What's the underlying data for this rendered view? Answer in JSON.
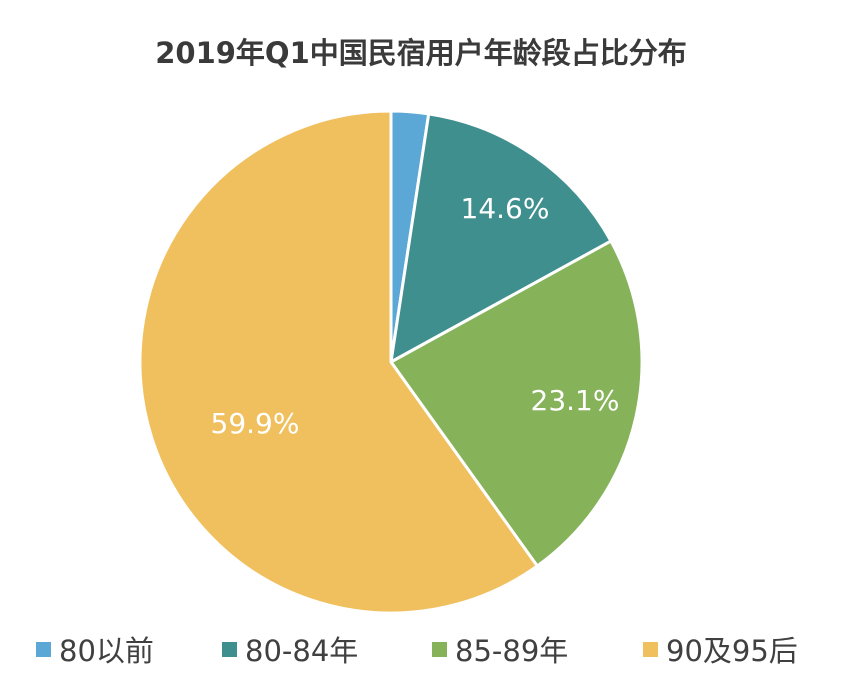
{
  "title": "2019年Q1中国民宿用户年龄段占比分布",
  "chart_data": {
    "type": "pie",
    "title": "2019年Q1中国民宿用户年龄段占比分布",
    "categories": [
      "80以前",
      "80-84年",
      "85-89年",
      "90及95后"
    ],
    "values": [
      2.4,
      14.6,
      23.1,
      59.9
    ],
    "labels": [
      "",
      "14.6%",
      "23.1%",
      "59.9%"
    ],
    "colors": [
      "#5ba8d6",
      "#3f8f8e",
      "#86b25a",
      "#f0c05e"
    ],
    "start_angle": "12 o'clock, clockwise",
    "legend_position": "bottom"
  },
  "legend": {
    "items": [
      {
        "label": "80以前",
        "color": "#5ba8d6"
      },
      {
        "label": "80-84年",
        "color": "#3f8f8e"
      },
      {
        "label": "85-89年",
        "color": "#86b25a"
      },
      {
        "label": "90及95后",
        "color": "#f0c05e"
      }
    ]
  }
}
